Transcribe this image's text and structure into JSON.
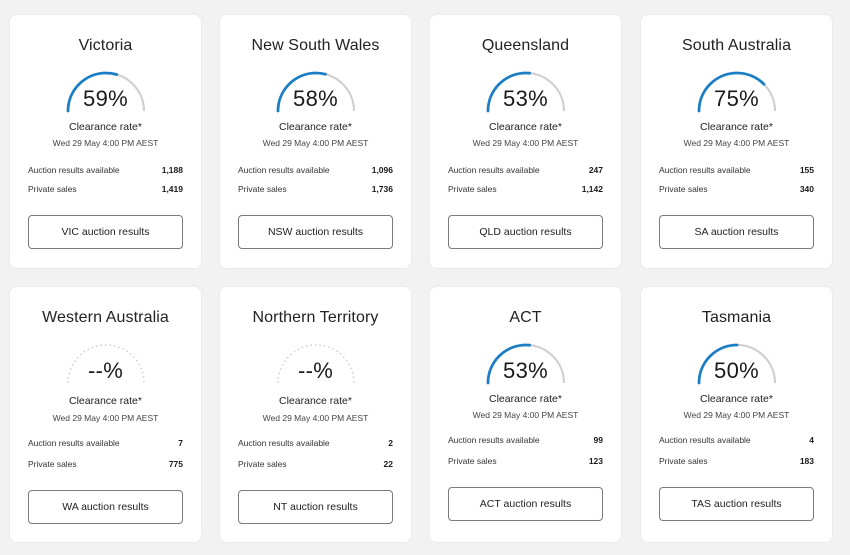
{
  "common": {
    "rate_label": "Clearance rate*",
    "date": "Wed 29 May 4:00 PM AEST",
    "auction_label": "Auction results available",
    "private_label": "Private sales"
  },
  "colors": {
    "accent": "#1b7ec4",
    "track": "#d0d0d0",
    "empty_track": "#cccccc"
  },
  "cards": [
    {
      "title": "Victoria",
      "rate": "59%",
      "fraction": 0.59,
      "auction": "1,188",
      "private": "1,419",
      "button": "VIC auction results"
    },
    {
      "title": "New South Wales",
      "rate": "58%",
      "fraction": 0.58,
      "auction": "1,096",
      "private": "1,736",
      "button": "NSW auction results"
    },
    {
      "title": "Queensland",
      "rate": "53%",
      "fraction": 0.53,
      "auction": "247",
      "private": "1,142",
      "button": "QLD auction results"
    },
    {
      "title": "South Australia",
      "rate": "75%",
      "fraction": 0.75,
      "auction": "155",
      "private": "340",
      "button": "SA auction results"
    },
    {
      "title": "Western Australia",
      "rate": "--%",
      "fraction": null,
      "auction": "7",
      "private": "775",
      "button": "WA auction results"
    },
    {
      "title": "Northern Territory",
      "rate": "--%",
      "fraction": null,
      "auction": "2",
      "private": "22",
      "button": "NT auction results"
    },
    {
      "title": "ACT",
      "rate": "53%",
      "fraction": 0.53,
      "auction": "99",
      "private": "123",
      "button": "ACT auction results"
    },
    {
      "title": "Tasmania",
      "rate": "50%",
      "fraction": 0.5,
      "auction": "4",
      "private": "183",
      "button": "TAS auction results"
    }
  ]
}
